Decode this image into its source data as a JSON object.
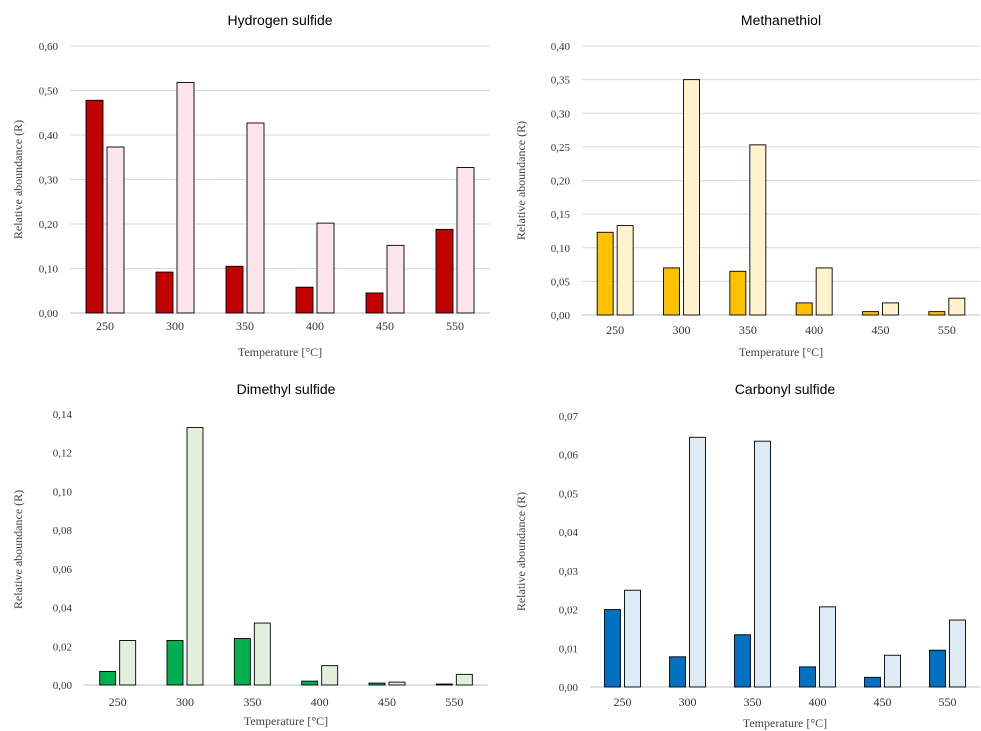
{
  "chart_data": [
    {
      "type": "bar",
      "title": "Hydrogen sulfide",
      "xlabel": "Temperature [°C]",
      "ylabel": "Relative aboundance (R)",
      "categories": [
        "250",
        "300",
        "350",
        "400",
        "450",
        "550"
      ],
      "ylim": [
        0,
        0.6
      ],
      "yticks": [
        "0,00",
        "0,10",
        "0,20",
        "0,30",
        "0,40",
        "0,50",
        "0,60"
      ],
      "grid": true,
      "series": [
        {
          "color": "#c00000",
          "values": [
            0.478,
            0.092,
            0.105,
            0.058,
            0.045,
            0.188
          ]
        },
        {
          "color": "#fce4ec",
          "values": [
            0.373,
            0.518,
            0.427,
            0.202,
            0.152,
            0.327
          ]
        }
      ]
    },
    {
      "type": "bar",
      "title": "Methanethiol",
      "xlabel": "Temperature [°C]",
      "ylabel": "Relative aboundance (R)",
      "categories": [
        "250",
        "300",
        "350",
        "400",
        "450",
        "550"
      ],
      "ylim": [
        0,
        0.4
      ],
      "yticks": [
        "0,00",
        "0,05",
        "0,10",
        "0,15",
        "0,20",
        "0,25",
        "0,30",
        "0,35",
        "0,40"
      ],
      "grid": true,
      "series": [
        {
          "color": "#ffc000",
          "values": [
            0.123,
            0.07,
            0.065,
            0.018,
            0.005,
            0.005
          ]
        },
        {
          "color": "#fff2cc",
          "values": [
            0.133,
            0.35,
            0.253,
            0.07,
            0.018,
            0.025
          ]
        }
      ]
    },
    {
      "type": "bar",
      "title": "Dimethyl sulfide",
      "xlabel": "Temperature [°C]",
      "ylabel": "Relative aboundance (R)",
      "categories": [
        "250",
        "300",
        "350",
        "400",
        "450",
        "550"
      ],
      "ylim": [
        0,
        0.14
      ],
      "yticks": [
        "0,00",
        "0,02",
        "0,04",
        "0,06",
        "0,08",
        "0,10",
        "0,12",
        "0,14"
      ],
      "grid": false,
      "series": [
        {
          "color": "#00b050",
          "values": [
            0.007,
            0.023,
            0.024,
            0.002,
            0.001,
            0.0005
          ]
        },
        {
          "color": "#e2efda",
          "values": [
            0.023,
            0.133,
            0.032,
            0.01,
            0.0015,
            0.0055
          ]
        }
      ]
    },
    {
      "type": "bar",
      "title": "Carbonyl sulfide",
      "xlabel": "Temperature [°C]",
      "ylabel": "Relative aboundance (R)",
      "categories": [
        "250",
        "300",
        "350",
        "400",
        "450",
        "550"
      ],
      "ylim": [
        0,
        0.07
      ],
      "yticks": [
        "0,00",
        "0,01",
        "0,02",
        "0,03",
        "0,04",
        "0,05",
        "0,06",
        "0,07"
      ],
      "grid": false,
      "series": [
        {
          "color": "#0070c0",
          "values": [
            0.02,
            0.0078,
            0.0135,
            0.0052,
            0.0025,
            0.0095
          ]
        },
        {
          "color": "#ddebf7",
          "values": [
            0.025,
            0.0645,
            0.0635,
            0.0207,
            0.0082,
            0.0173
          ]
        }
      ]
    }
  ]
}
